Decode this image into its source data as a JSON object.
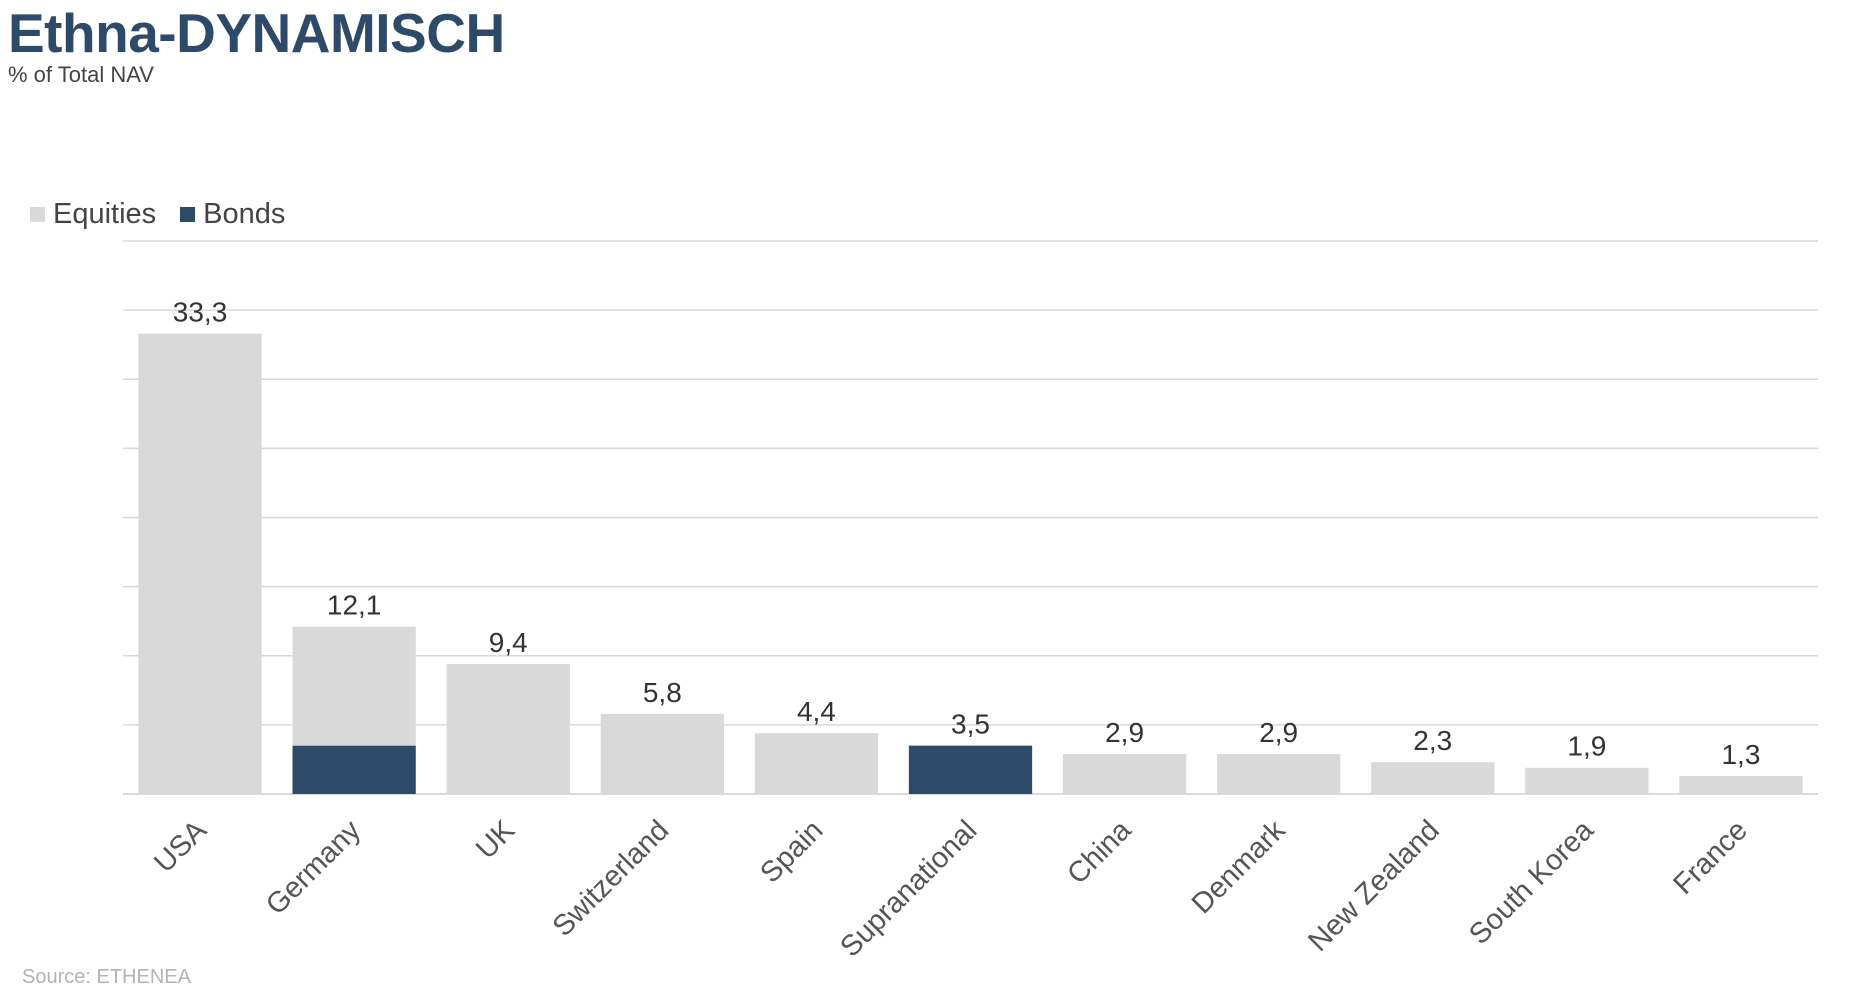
{
  "colors": {
    "equities": "#d9d9d9",
    "bonds": "#2d4a68",
    "title": "#2d4a68",
    "gridline": "#d9d9d9"
  },
  "chart_data": {
    "type": "bar",
    "stacked": true,
    "title": "Ethna-DYNAMISCH",
    "subtitle": "% of Total NAV",
    "source": "Source: ETHENEA",
    "legend_position": "top-left",
    "grid": true,
    "ylim": [
      0,
      40
    ],
    "y_tick_step": 5,
    "categories": [
      "USA",
      "Germany",
      "UK",
      "Switzerland",
      "Spain",
      "Supranational",
      "China",
      "Denmark",
      "New Zealand",
      "South Korea",
      "France"
    ],
    "series": [
      {
        "name": "Equities",
        "color": "#d9d9d9",
        "values": [
          33.3,
          8.6,
          9.4,
          5.8,
          4.4,
          0,
          2.9,
          2.9,
          2.3,
          1.9,
          1.3
        ]
      },
      {
        "name": "Bonds",
        "color": "#2d4a68",
        "values": [
          0,
          3.5,
          0,
          0,
          0,
          3.5,
          0,
          0,
          0,
          0,
          0
        ]
      }
    ],
    "data_labels": [
      "33,3",
      "12,1",
      "9,4",
      "5,8",
      "4,4",
      "3,5",
      "2,9",
      "2,9",
      "2,3",
      "1,9",
      "1,3"
    ]
  }
}
